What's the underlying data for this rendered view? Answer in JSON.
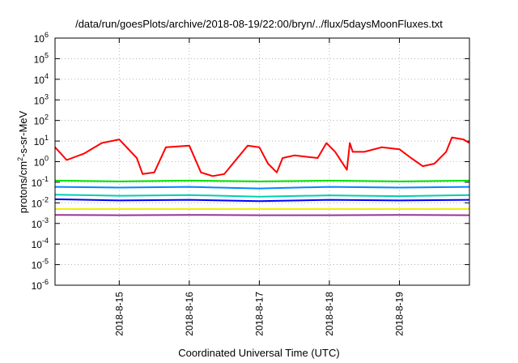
{
  "chart_data": {
    "type": "line",
    "title": "/data/run/goesPlots/archive/2018-08-19/22:00/bryn/../flux/5daysMoonFluxes.txt",
    "xlabel": "Coordinated Universal Time (UTC)",
    "ylabel": "protons/cm2-s-sr-MeV",
    "ylabel_parts": {
      "pre": "protons/cm",
      "sup": "2",
      "post": "-s-sr-MeV"
    },
    "y_scale": "log",
    "ylim": [
      1e-06,
      1000000.0
    ],
    "xlim": [
      "2018-08-14 02:00",
      "2018-08-20 00:00"
    ],
    "x_ticks": [
      "2018-8-15",
      "2018-8-16",
      "2018-8-17",
      "2018-8-18",
      "2018-8-19"
    ],
    "y_ticks": [
      {
        "base": "10",
        "exp": "-6"
      },
      {
        "base": "10",
        "exp": "-5"
      },
      {
        "base": "10",
        "exp": "-4"
      },
      {
        "base": "10",
        "exp": "-3"
      },
      {
        "base": "10",
        "exp": "-2"
      },
      {
        "base": "10",
        "exp": "-1"
      },
      {
        "base": "10",
        "exp": "0"
      },
      {
        "base": "10",
        "exp": "1"
      },
      {
        "base": "10",
        "exp": "2"
      },
      {
        "base": "10",
        "exp": "3"
      },
      {
        "base": "10",
        "exp": "4"
      },
      {
        "base": "10",
        "exp": "5"
      },
      {
        "base": "10",
        "exp": "6"
      }
    ],
    "grid": true,
    "legend": "none",
    "series": [
      {
        "color": "#ff0000",
        "x": [
          "2018-08-14 02:00",
          "2018-08-14 06:00",
          "2018-08-14 12:00",
          "2018-08-14 18:00",
          "2018-08-15 00:00",
          "2018-08-15 06:00",
          "2018-08-15 08:00",
          "2018-08-15 12:00",
          "2018-08-15 16:00",
          "2018-08-16 00:00",
          "2018-08-16 04:00",
          "2018-08-16 08:00",
          "2018-08-16 12:00",
          "2018-08-16 20:00",
          "2018-08-17 00:00",
          "2018-08-17 03:00",
          "2018-08-17 06:00",
          "2018-08-17 08:00",
          "2018-08-17 12:00",
          "2018-08-17 20:00",
          "2018-08-17 23:00",
          "2018-08-18 02:00",
          "2018-08-18 06:00",
          "2018-08-18 07:00",
          "2018-08-18 08:00",
          "2018-08-18 12:00",
          "2018-08-18 18:00",
          "2018-08-19 00:00",
          "2018-08-19 04:00",
          "2018-08-19 08:00",
          "2018-08-19 12:00",
          "2018-08-19 16:00",
          "2018-08-19 18:00",
          "2018-08-19 22:00",
          "2018-08-20 00:00"
        ],
        "y": [
          5,
          1.2,
          2.5,
          8,
          12,
          1.5,
          0.25,
          0.3,
          5,
          6,
          0.3,
          0.2,
          0.25,
          6,
          5,
          0.8,
          0.3,
          1.5,
          2,
          1.5,
          8,
          3,
          0.4,
          8,
          3,
          3,
          5,
          4,
          1.5,
          0.6,
          0.8,
          3,
          15,
          12,
          8
        ]
      },
      {
        "color": "#00e000",
        "x": [
          "2018-08-14 02:00",
          "2018-08-15 00:00",
          "2018-08-16 00:00",
          "2018-08-17 00:00",
          "2018-08-18 00:00",
          "2018-08-19 00:00",
          "2018-08-20 00:00"
        ],
        "y": [
          0.12,
          0.11,
          0.12,
          0.11,
          0.12,
          0.11,
          0.12
        ]
      },
      {
        "color": "#0088ff",
        "x": [
          "2018-08-14 02:00",
          "2018-08-15 00:00",
          "2018-08-16 00:00",
          "2018-08-17 00:00",
          "2018-08-18 00:00",
          "2018-08-19 00:00",
          "2018-08-20 00:00"
        ],
        "y": [
          0.06,
          0.055,
          0.06,
          0.05,
          0.06,
          0.055,
          0.06
        ]
      },
      {
        "color": "#00d0b0",
        "x": [
          "2018-08-14 02:00",
          "2018-08-15 00:00",
          "2018-08-16 00:00",
          "2018-08-17 00:00",
          "2018-08-18 00:00",
          "2018-08-19 00:00",
          "2018-08-20 00:00"
        ],
        "y": [
          0.025,
          0.022,
          0.024,
          0.02,
          0.023,
          0.021,
          0.024
        ]
      },
      {
        "color": "#0000ff",
        "x": [
          "2018-08-14 02:00",
          "2018-08-15 00:00",
          "2018-08-16 00:00",
          "2018-08-17 00:00",
          "2018-08-18 00:00",
          "2018-08-19 00:00",
          "2018-08-20 00:00"
        ],
        "y": [
          0.015,
          0.013,
          0.014,
          0.012,
          0.014,
          0.013,
          0.014
        ]
      },
      {
        "color": "#f0f000",
        "x": [
          "2018-08-14 02:00",
          "2018-08-15 00:00",
          "2018-08-16 00:00",
          "2018-08-17 00:00",
          "2018-08-18 00:00",
          "2018-08-19 00:00",
          "2018-08-20 00:00"
        ],
        "y": [
          0.005,
          0.005,
          0.005,
          0.005,
          0.005,
          0.005,
          0.005
        ]
      },
      {
        "color": "#993399",
        "x": [
          "2018-08-14 02:00",
          "2018-08-15 00:00",
          "2018-08-16 00:00",
          "2018-08-17 00:00",
          "2018-08-18 00:00",
          "2018-08-19 00:00",
          "2018-08-20 00:00"
        ],
        "y": [
          0.0026,
          0.0025,
          0.0026,
          0.0025,
          0.0025,
          0.0026,
          0.0025
        ]
      }
    ]
  }
}
